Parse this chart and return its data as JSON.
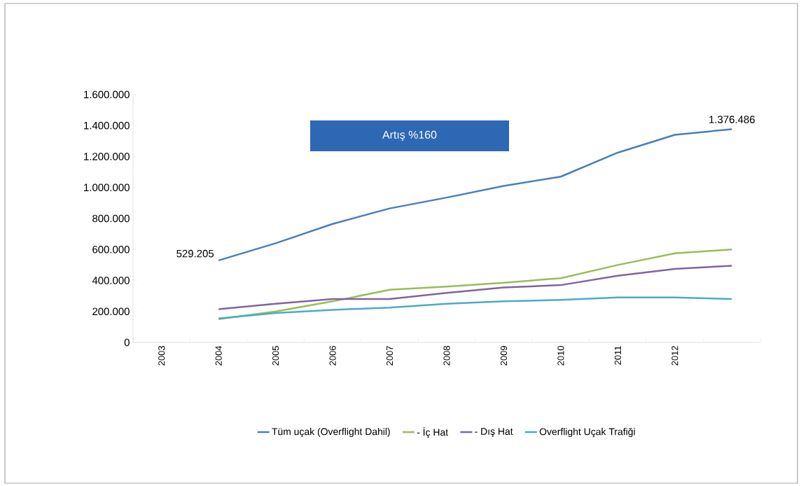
{
  "chart_data": {
    "type": "line",
    "categories": [
      "2003",
      "2004",
      "2005",
      "2006",
      "2007",
      "2008",
      "2009",
      "2010",
      "2011",
      "2012",
      null
    ],
    "series": [
      {
        "name": "Tüm uçak (Overflight Dahil)",
        "color": "#4a7ebb",
        "values": [
          null,
          529205,
          640000,
          765000,
          865000,
          935000,
          1010000,
          1070000,
          1225000,
          1340000,
          1376486
        ],
        "value_labels": [
          null,
          "529.205",
          null,
          null,
          null,
          null,
          null,
          null,
          null,
          null,
          "1.376.486"
        ]
      },
      {
        "name": "- İç Hat",
        "color": "#9bbb59",
        "values": [
          null,
          150000,
          200000,
          265000,
          340000,
          360000,
          385000,
          415000,
          500000,
          575000,
          600000
        ]
      },
      {
        "name": "- Dış Hat",
        "color": "#8064a2",
        "values": [
          null,
          215000,
          250000,
          280000,
          280000,
          320000,
          355000,
          370000,
          430000,
          475000,
          495000
        ]
      },
      {
        "name": "Overflight Uçak Trafiği",
        "color": "#4bacc6",
        "values": [
          null,
          155000,
          190000,
          210000,
          225000,
          250000,
          265000,
          275000,
          290000,
          290000,
          280000
        ]
      }
    ],
    "ylim": [
      0,
      1600000
    ],
    "yticks": [
      {
        "value": 0,
        "label": "0"
      },
      {
        "value": 200000,
        "label": "200.000"
      },
      {
        "value": 400000,
        "label": "400.000"
      },
      {
        "value": 600000,
        "label": "600.000"
      },
      {
        "value": 800000,
        "label": "800.000"
      },
      {
        "value": 1000000,
        "label": "1.000.000"
      },
      {
        "value": 1200000,
        "label": "1.200.000"
      },
      {
        "value": 1400000,
        "label": "1.400.000"
      },
      {
        "value": 1600000,
        "label": "1.600.000"
      }
    ],
    "annotations": [
      "Artış  %160"
    ],
    "legend": "bottom",
    "grid": false,
    "marker": "none",
    "line_style": "solid"
  }
}
